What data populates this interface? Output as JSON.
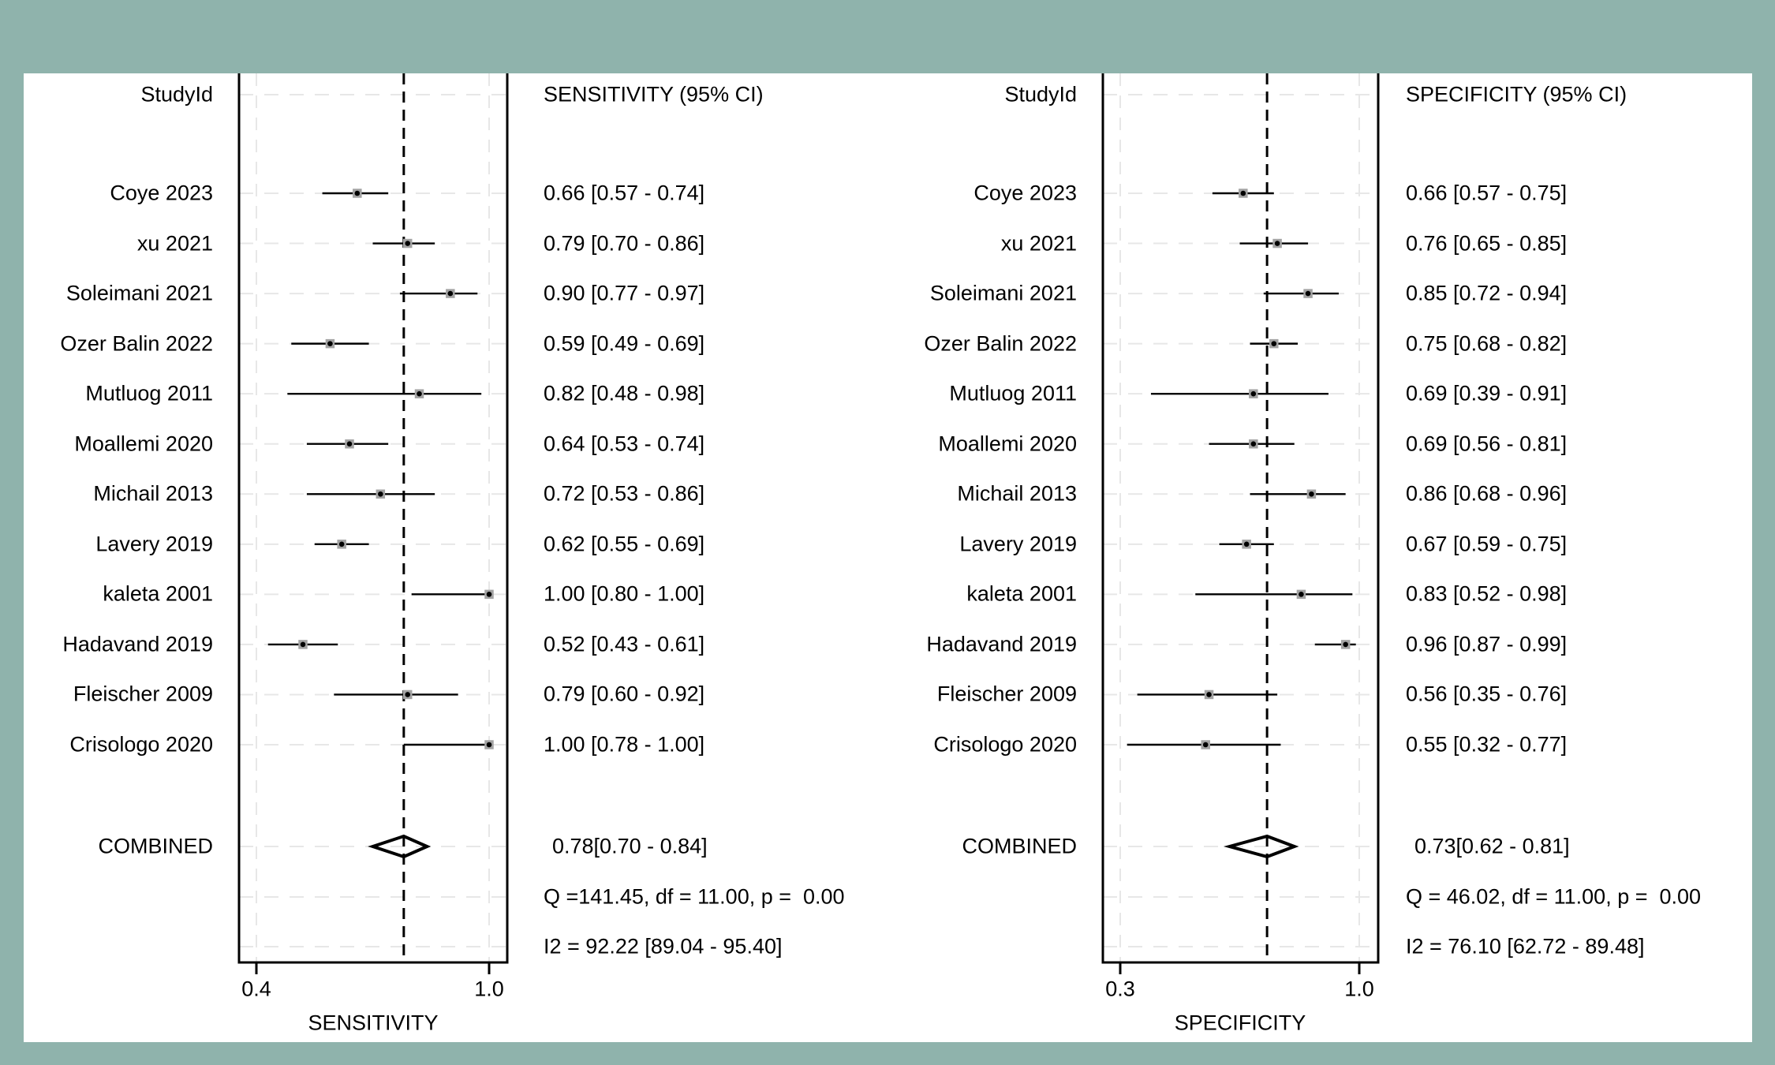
{
  "colors": {
    "background": "#8fb3ac",
    "card": "#ffffff",
    "ink": "#000000",
    "marker_fill": "#a3a3a3",
    "grid": "#e7e7e7"
  },
  "chart_data": [
    {
      "type": "forest",
      "title": "SENSITIVITY (95% CI)",
      "study_column_header": "StudyId",
      "xlabel": "SENSITIVITY",
      "x_ticks": [
        {
          "value": 0.4,
          "label": "0.4"
        },
        {
          "value": 1.0,
          "label": "1.0"
        }
      ],
      "studies": [
        {
          "study": "Coye 2023",
          "est": 0.66,
          "lo": 0.57,
          "hi": 0.74,
          "text": "0.66 [0.57 - 0.74]"
        },
        {
          "study": "xu 2021",
          "est": 0.79,
          "lo": 0.7,
          "hi": 0.86,
          "text": "0.79 [0.70 - 0.86]"
        },
        {
          "study": "Soleimani 2021",
          "est": 0.9,
          "lo": 0.77,
          "hi": 0.97,
          "text": "0.90 [0.77 - 0.97]"
        },
        {
          "study": "Ozer Balin 2022",
          "est": 0.59,
          "lo": 0.49,
          "hi": 0.69,
          "text": "0.59 [0.49 - 0.69]"
        },
        {
          "study": "Mutluog 2011",
          "est": 0.82,
          "lo": 0.48,
          "hi": 0.98,
          "text": "0.82 [0.48 - 0.98]"
        },
        {
          "study": "Moallemi 2020",
          "est": 0.64,
          "lo": 0.53,
          "hi": 0.74,
          "text": "0.64 [0.53 - 0.74]"
        },
        {
          "study": "Michail 2013",
          "est": 0.72,
          "lo": 0.53,
          "hi": 0.86,
          "text": "0.72 [0.53 - 0.86]"
        },
        {
          "study": "Lavery 2019",
          "est": 0.62,
          "lo": 0.55,
          "hi": 0.69,
          "text": "0.62 [0.55 - 0.69]"
        },
        {
          "study": "kaleta 2001",
          "est": 1.0,
          "lo": 0.8,
          "hi": 1.0,
          "text": "1.00 [0.80 - 1.00]"
        },
        {
          "study": "Hadavand 2019",
          "est": 0.52,
          "lo": 0.43,
          "hi": 0.61,
          "text": "0.52 [0.43 - 0.61]"
        },
        {
          "study": "Fleischer 2009",
          "est": 0.79,
          "lo": 0.6,
          "hi": 0.92,
          "text": "0.79 [0.60 - 0.92]"
        },
        {
          "study": "Crisologo 2020",
          "est": 1.0,
          "lo": 0.78,
          "hi": 1.0,
          "text": "1.00 [0.78 - 1.00]"
        }
      ],
      "combined": {
        "study": "COMBINED",
        "est": 0.78,
        "lo": 0.7,
        "hi": 0.84,
        "text": "0.78[0.70 - 0.84]"
      },
      "heterogeneity_q": "Q =141.45, df = 11.00, p =  0.00",
      "heterogeneity_i2": "I2 = 92.22 [89.04 - 95.40]"
    },
    {
      "type": "forest",
      "title": "SPECIFICITY (95% CI)",
      "study_column_header": "StudyId",
      "xlabel": "SPECIFICITY",
      "x_ticks": [
        {
          "value": 0.3,
          "label": "0.3"
        },
        {
          "value": 1.0,
          "label": "1.0"
        }
      ],
      "studies": [
        {
          "study": "Coye 2023",
          "est": 0.66,
          "lo": 0.57,
          "hi": 0.75,
          "text": "0.66 [0.57 - 0.75]"
        },
        {
          "study": "xu 2021",
          "est": 0.76,
          "lo": 0.65,
          "hi": 0.85,
          "text": "0.76 [0.65 - 0.85]"
        },
        {
          "study": "Soleimani 2021",
          "est": 0.85,
          "lo": 0.72,
          "hi": 0.94,
          "text": "0.85 [0.72 - 0.94]"
        },
        {
          "study": "Ozer Balin 2022",
          "est": 0.75,
          "lo": 0.68,
          "hi": 0.82,
          "text": "0.75 [0.68 - 0.82]"
        },
        {
          "study": "Mutluog 2011",
          "est": 0.69,
          "lo": 0.39,
          "hi": 0.91,
          "text": "0.69 [0.39 - 0.91]"
        },
        {
          "study": "Moallemi 2020",
          "est": 0.69,
          "lo": 0.56,
          "hi": 0.81,
          "text": "0.69 [0.56 - 0.81]"
        },
        {
          "study": "Michail 2013",
          "est": 0.86,
          "lo": 0.68,
          "hi": 0.96,
          "text": "0.86 [0.68 - 0.96]"
        },
        {
          "study": "Lavery 2019",
          "est": 0.67,
          "lo": 0.59,
          "hi": 0.75,
          "text": "0.67 [0.59 - 0.75]"
        },
        {
          "study": "kaleta 2001",
          "est": 0.83,
          "lo": 0.52,
          "hi": 0.98,
          "text": "0.83 [0.52 - 0.98]"
        },
        {
          "study": "Hadavand 2019",
          "est": 0.96,
          "lo": 0.87,
          "hi": 0.99,
          "text": "0.96 [0.87 - 0.99]"
        },
        {
          "study": "Fleischer 2009",
          "est": 0.56,
          "lo": 0.35,
          "hi": 0.76,
          "text": "0.56 [0.35 - 0.76]"
        },
        {
          "study": "Crisologo 2020",
          "est": 0.55,
          "lo": 0.32,
          "hi": 0.77,
          "text": "0.55 [0.32 - 0.77]"
        }
      ],
      "combined": {
        "study": "COMBINED",
        "est": 0.73,
        "lo": 0.62,
        "hi": 0.81,
        "text": "0.73[0.62 - 0.81]"
      },
      "heterogeneity_q": "Q = 46.02, df = 11.00, p =  0.00",
      "heterogeneity_i2": "I2 = 76.10 [62.72 - 89.48]"
    }
  ]
}
